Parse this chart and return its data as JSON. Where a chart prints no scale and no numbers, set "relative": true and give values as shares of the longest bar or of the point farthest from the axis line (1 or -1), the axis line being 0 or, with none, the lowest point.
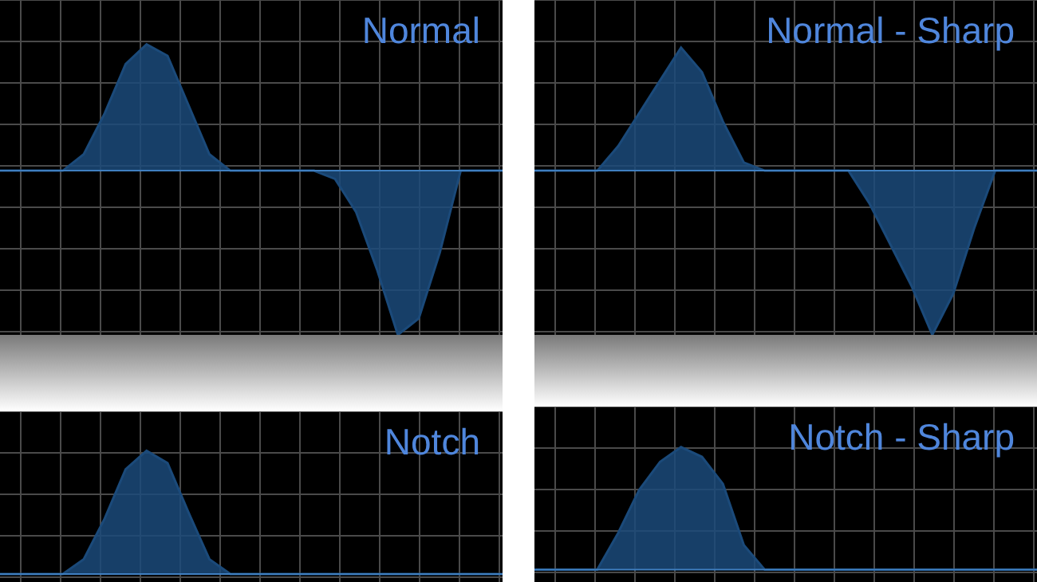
{
  "chart_data": [
    {
      "type": "area",
      "title": "Normal",
      "relative": true,
      "grid": true,
      "color": "#1b4a7a",
      "categories": [
        null,
        null,
        null,
        null,
        null,
        null,
        null,
        null,
        null,
        null,
        null,
        null,
        null,
        null,
        null,
        null,
        null,
        null,
        null,
        null,
        null,
        null,
        null,
        null,
        null
      ],
      "values": [
        0,
        0,
        0,
        0,
        0.1,
        0.35,
        0.65,
        0.77,
        0.7,
        0.4,
        0.1,
        0,
        0,
        0,
        0,
        0,
        -0.05,
        -0.25,
        -0.6,
        -1,
        -0.9,
        -0.5,
        0,
        0,
        0
      ]
    },
    {
      "type": "area",
      "title": "Normal - Sharp",
      "relative": true,
      "grid": true,
      "color": "#1b4a7a",
      "categories": [
        null,
        null,
        null,
        null,
        null,
        null,
        null,
        null,
        null,
        null,
        null,
        null,
        null,
        null,
        null,
        null,
        null,
        null,
        null,
        null,
        null,
        null,
        null,
        null,
        null
      ],
      "values": [
        0,
        0,
        0,
        0,
        0.15,
        0.35,
        0.55,
        0.75,
        0.6,
        0.3,
        0.05,
        0,
        0,
        0,
        0,
        0,
        -0.2,
        -0.45,
        -0.7,
        -1,
        -0.75,
        -0.35,
        0,
        0,
        0
      ]
    },
    {
      "type": "area",
      "title": "Notch",
      "relative": true,
      "grid": true,
      "color": "#1b4a7a",
      "categories": [
        null,
        null,
        null,
        null,
        null,
        null,
        null,
        null,
        null,
        null,
        null,
        null,
        null,
        null,
        null,
        null,
        null,
        null,
        null,
        null,
        null,
        null,
        null,
        null,
        null
      ],
      "values": [
        0,
        0,
        0,
        0,
        0.12,
        0.45,
        0.85,
        1,
        0.9,
        0.5,
        0.12,
        0,
        0,
        0,
        0,
        0,
        0,
        0,
        0,
        0,
        0,
        0,
        0,
        0,
        0
      ]
    },
    {
      "type": "area",
      "title": "Notch - Sharp",
      "relative": true,
      "grid": true,
      "color": "#1b4a7a",
      "categories": [
        null,
        null,
        null,
        null,
        null,
        null,
        null,
        null,
        null,
        null,
        null,
        null,
        null,
        null,
        null,
        null,
        null,
        null,
        null,
        null,
        null,
        null,
        null,
        null,
        null
      ],
      "values": [
        0,
        0,
        0,
        0,
        0.3,
        0.65,
        0.88,
        1,
        0.92,
        0.7,
        0.2,
        0,
        0,
        0,
        0,
        0,
        0,
        0,
        0,
        0,
        0,
        0,
        0,
        0,
        0
      ]
    }
  ]
}
